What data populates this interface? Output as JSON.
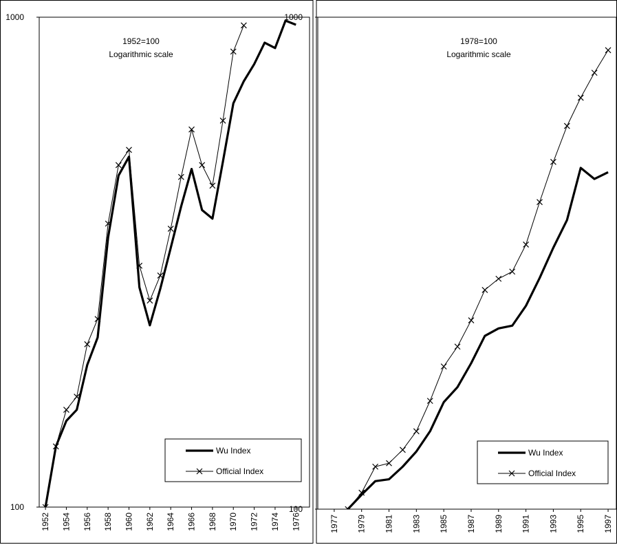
{
  "chart_data": [
    {
      "type": "line",
      "log_y": true,
      "legend": "lower right",
      "annotations": [
        "1952=100",
        "Logarithmic scale"
      ],
      "x": [
        1952,
        1953,
        1954,
        1955,
        1956,
        1957,
        1958,
        1959,
        1960,
        1961,
        1962,
        1963,
        1964,
        1965,
        1966,
        1967,
        1968,
        1969,
        1970,
        1971,
        1972,
        1973,
        1974,
        1975,
        1976
      ],
      "xlim": [
        1951.4,
        1977.3
      ],
      "xticks": [
        1952,
        1954,
        1956,
        1958,
        1960,
        1962,
        1964,
        1966,
        1968,
        1970,
        1972,
        1974,
        1976
      ],
      "ylim": [
        100,
        1000
      ],
      "yticks": [
        100,
        1000
      ],
      "series": [
        {
          "name": "Wu Index",
          "color": "#000000",
          "values": [
            100,
            133,
            150,
            158,
            195,
            222,
            355,
            475,
            519,
            281,
            235,
            279,
            338,
            411,
            490,
            404,
            388,
            507,
            667,
            740,
            802,
            887,
            865,
            984,
            965
          ]
        },
        {
          "name": "Official Index",
          "color": "#000000",
          "marker": "x",
          "values": [
            100,
            133,
            158,
            168,
            215,
            242,
            379,
            499,
            536,
            311,
            264,
            297,
            370,
            472,
            590,
            499,
            453,
            615,
            851,
            962,
            null,
            null,
            null,
            null,
            null
          ]
        }
      ]
    },
    {
      "type": "line",
      "log_y": true,
      "legend": "lower right",
      "annotations": [
        "1978=100",
        "Logarithmic scale"
      ],
      "x": [
        1978,
        1979,
        1980,
        1981,
        1982,
        1983,
        1984,
        1985,
        1986,
        1987,
        1988,
        1989,
        1990,
        1991,
        1992,
        1993,
        1994,
        1995,
        1996,
        1997
      ],
      "xlim": [
        1975.8,
        1997.6
      ],
      "xticks": [
        1977,
        1979,
        1981,
        1983,
        1985,
        1987,
        1989,
        1991,
        1993,
        1995,
        1997
      ],
      "ylim": [
        100,
        1000
      ],
      "yticks": [
        100,
        1000
      ],
      "series": [
        {
          "name": "Wu Index",
          "color": "#000000",
          "values": [
            100,
            107,
            114,
            115,
            122,
            131,
            144,
            165,
            177,
            198,
            225,
            233,
            236,
            259,
            295,
            340,
            387,
            494,
            469,
            484
          ]
        },
        {
          "name": "Official Index",
          "color": "#000000",
          "marker": "x",
          "values": [
            100,
            108,
            122,
            124,
            132,
            144,
            166,
            195,
            214,
            242,
            279,
            294,
            304,
            345,
            421,
            508,
            601,
            686,
            771,
            857
          ]
        }
      ]
    }
  ]
}
